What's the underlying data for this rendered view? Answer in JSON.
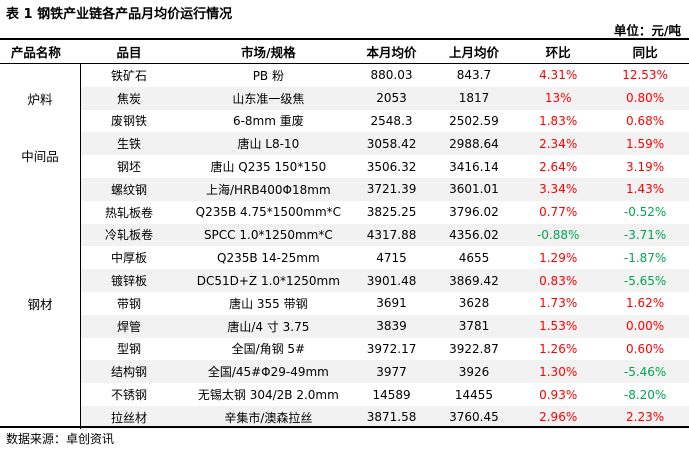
{
  "title": "表 1  钢铁产业链各产品月均价运行情况",
  "unit": "单位：元/吨",
  "headers": [
    "产品名称",
    "品目",
    "市场/规格",
    "本月均价",
    "上月均价",
    "环比",
    "同比"
  ],
  "groups": [
    {
      "name": "炉料",
      "rows": [
        {
          "item": "铁矿石",
          "market": "PB 粉",
          "cur": "880.03",
          "prev": "843.7",
          "mom": "4.31%",
          "mom_dir": "up",
          "yoy": "12.53%",
          "yoy_dir": "up"
        },
        {
          "item": "焦炭",
          "market": "山东准一级焦",
          "cur": "2053",
          "prev": "1817",
          "mom": "13%",
          "mom_dir": "up",
          "yoy": "0.80%",
          "yoy_dir": "up"
        },
        {
          "item": "废钢铁",
          "market": "6-8mm 重废",
          "cur": "2548.3",
          "prev": "2502.59",
          "mom": "1.83%",
          "mom_dir": "up",
          "yoy": "0.68%",
          "yoy_dir": "up"
        }
      ]
    },
    {
      "name": "中间品",
      "rows": [
        {
          "item": "生铁",
          "market": "唐山 L8-10",
          "cur": "3058.42",
          "prev": "2988.64",
          "mom": "2.34%",
          "mom_dir": "up",
          "yoy": "1.59%",
          "yoy_dir": "up"
        },
        {
          "item": "钢坯",
          "market": "唐山 Q235  150*150",
          "cur": "3506.32",
          "prev": "3416.14",
          "mom": "2.64%",
          "mom_dir": "up",
          "yoy": "3.19%",
          "yoy_dir": "up"
        }
      ]
    },
    {
      "name": "钢材",
      "rows": [
        {
          "item": "螺纹钢",
          "market": "上海/HRB400Φ18mm",
          "cur": "3721.39",
          "prev": "3601.01",
          "mom": "3.34%",
          "mom_dir": "up",
          "yoy": "1.43%",
          "yoy_dir": "up"
        },
        {
          "item": "热轧板卷",
          "market": "Q235B 4.75*1500mm*C",
          "cur": "3825.25",
          "prev": "3796.02",
          "mom": "0.77%",
          "mom_dir": "up",
          "yoy": "-0.52%",
          "yoy_dir": "down"
        },
        {
          "item": "冷轧板卷",
          "market": "SPCC 1.0*1250mm*C",
          "cur": "4317.88",
          "prev": "4356.02",
          "mom": "-0.88%",
          "mom_dir": "down",
          "yoy": "-3.71%",
          "yoy_dir": "down"
        },
        {
          "item": "中厚板",
          "market": "Q235B 14-25mm",
          "cur": "4715",
          "prev": "4655",
          "mom": "1.29%",
          "mom_dir": "up",
          "yoy": "-1.87%",
          "yoy_dir": "down"
        },
        {
          "item": "镀锌板",
          "market": "DC51D+Z 1.0*1250mm",
          "cur": "3901.48",
          "prev": "3869.42",
          "mom": "0.83%",
          "mom_dir": "up",
          "yoy": "-5.65%",
          "yoy_dir": "down"
        },
        {
          "item": "带钢",
          "market": "唐山 355 带钢",
          "cur": "3691",
          "prev": "3628",
          "mom": "1.73%",
          "mom_dir": "up",
          "yoy": "1.62%",
          "yoy_dir": "up"
        },
        {
          "item": "焊管",
          "market": "唐山/4 寸 3.75",
          "cur": "3839",
          "prev": "3781",
          "mom": "1.53%",
          "mom_dir": "up",
          "yoy": "0.00%",
          "yoy_dir": "up"
        },
        {
          "item": "型钢",
          "market": "全国/角钢 5#",
          "cur": "3972.17",
          "prev": "3922.87",
          "mom": "1.26%",
          "mom_dir": "up",
          "yoy": "0.60%",
          "yoy_dir": "up"
        },
        {
          "item": "结构钢",
          "market": "全国/45#Φ29-49mm",
          "cur": "3977",
          "prev": "3926",
          "mom": "1.30%",
          "mom_dir": "up",
          "yoy": "-5.46%",
          "yoy_dir": "down"
        },
        {
          "item": "不锈钢",
          "market": "无锡太钢 304/2B 2.0mm",
          "cur": "14589",
          "prev": "14455",
          "mom": "0.93%",
          "mom_dir": "up",
          "yoy": "-8.20%",
          "yoy_dir": "down"
        },
        {
          "item": "拉丝材",
          "market": "辛集市/澳森拉丝",
          "cur": "3871.58",
          "prev": "3760.45",
          "mom": "2.96%",
          "mom_dir": "up",
          "yoy": "2.23%",
          "yoy_dir": "up"
        }
      ]
    }
  ],
  "colors": {
    "up": "#ff0000",
    "down": "#00a651",
    "band": "#f2f2f2"
  },
  "source": "数据来源：卓创资讯"
}
